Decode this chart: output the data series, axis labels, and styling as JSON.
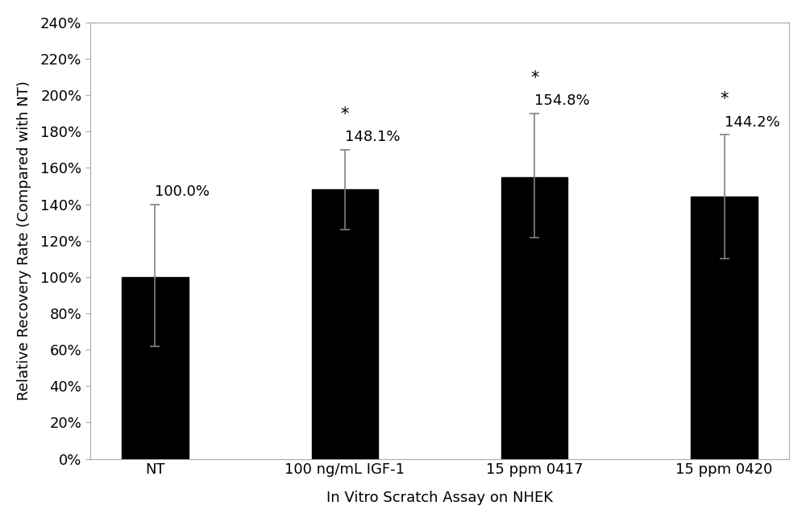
{
  "categories": [
    "NT",
    "100 ng/mL IGF-1",
    "15 ppm 0417",
    "15 ppm 0420"
  ],
  "values": [
    100.0,
    148.1,
    154.8,
    144.2
  ],
  "errors_upper": [
    40.0,
    22.0,
    35.0,
    34.0
  ],
  "errors_lower": [
    38.0,
    22.0,
    33.0,
    34.0
  ],
  "labels": [
    "100.0%",
    "148.1%",
    "154.8%",
    "144.2%"
  ],
  "significance": [
    false,
    true,
    true,
    true
  ],
  "bar_color": "#000000",
  "error_color": "#808080",
  "ylabel": "Relative Recovery Rate (Compared with NT)",
  "xlabel": "In Vitro Scratch Assay on NHEK",
  "ylim": [
    0,
    240
  ],
  "ytick_step": 20,
  "bar_width": 0.35,
  "figure_width": 10.0,
  "figure_height": 6.48,
  "tick_fontsize": 13,
  "axis_label_fontsize": 13,
  "annotation_fontsize": 13,
  "star_fontsize": 15,
  "background_color": "#ffffff",
  "spine_color": "#aaaaaa"
}
